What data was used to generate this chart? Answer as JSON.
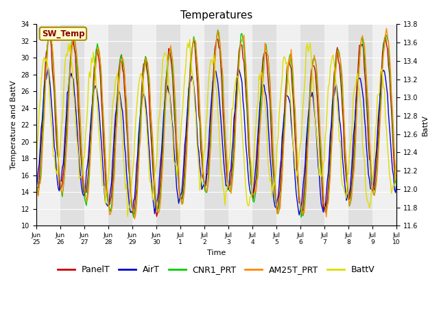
{
  "title": "Temperatures",
  "xlabel": "Time",
  "ylabel_left": "Temperature and BattV",
  "ylabel_right": "BattV",
  "ylim_left": [
    10,
    34
  ],
  "ylim_right": [
    11.6,
    13.8
  ],
  "n_days": 15,
  "xtick_labels": [
    "Jun\n25",
    "Jun\n26",
    "Jun\n27",
    "Jun\n28",
    "Jun\n29",
    "Jun\n30",
    "Jul\n1",
    "Jul\n2",
    "Jul\n3",
    "Jul\n4",
    "Jul\n5",
    "Jul\n6",
    "Jul\n7",
    "Jul\n8",
    "Jul\n9",
    "Jul\n10"
  ],
  "sw_temp_label": "SW_Temp",
  "legend_items": [
    "PanelT",
    "AirT",
    "CNR1_PRT",
    "AM25T_PRT",
    "BattV"
  ],
  "line_colors": [
    "#cc0000",
    "#0000cc",
    "#00cc00",
    "#ff8800",
    "#dddd00"
  ],
  "plot_bg_even": "#f0f0f0",
  "plot_bg_odd": "#e0e0e0",
  "title_fontsize": 11,
  "axis_fontsize": 8,
  "tick_fontsize": 7,
  "legend_fontsize": 9,
  "sw_temp_color": "#880000",
  "sw_temp_bg": "#ffffcc",
  "sw_temp_edge": "#aa8800"
}
